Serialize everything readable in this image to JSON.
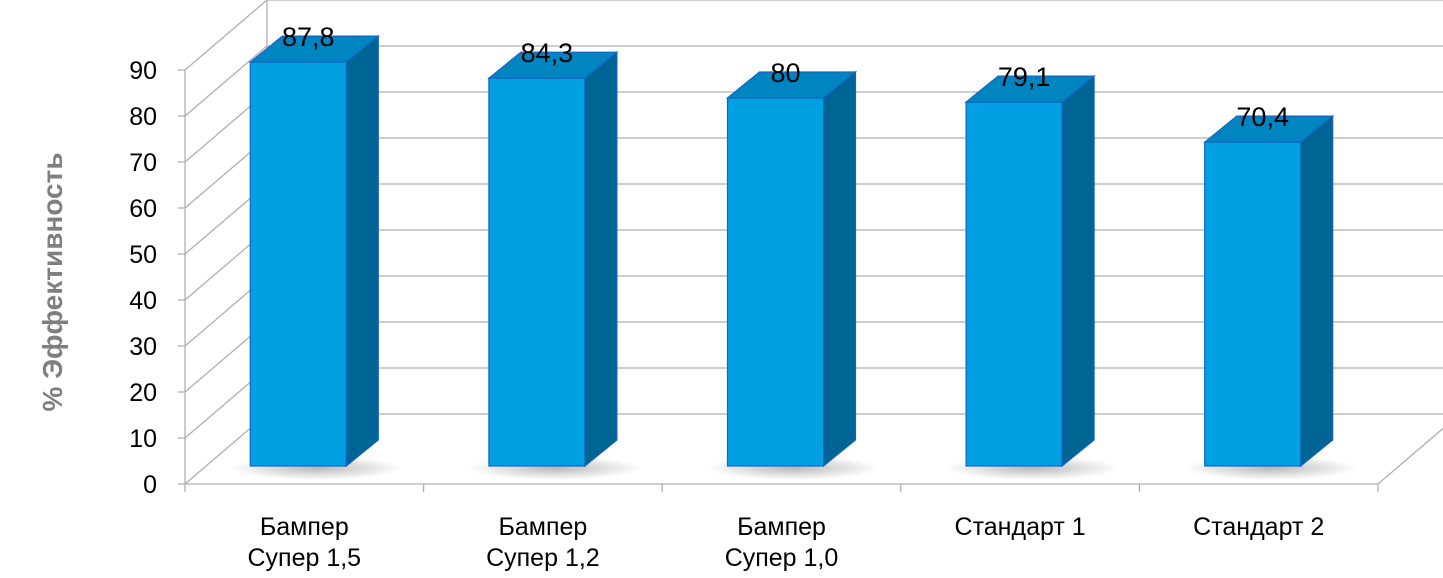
{
  "chart_data": {
    "type": "bar",
    "style": "3d-column",
    "categories": [
      [
        "Бампер",
        "Супер 1,5"
      ],
      [
        "Бампер",
        "Супер 1,2"
      ],
      [
        "Бампер",
        "Супер 1,0"
      ],
      [
        "Стандарт 1"
      ],
      [
        "Стандарт 2"
      ]
    ],
    "values": [
      87.8,
      84.3,
      80,
      79.1,
      70.4
    ],
    "value_labels": [
      "87,8",
      "84,3",
      "80",
      "79,1",
      "70,4"
    ],
    "title": "",
    "xlabel": "",
    "ylabel": "% Эффективность",
    "ylim": [
      0,
      90
    ],
    "yticks": [
      "0",
      "10",
      "20",
      "30",
      "40",
      "50",
      "60",
      "70",
      "80",
      "90"
    ],
    "grid": true,
    "legend": "none",
    "colors": {
      "front": "#00A0E3",
      "side": "#006494",
      "top": "#0085C0",
      "outline": "#1565C0",
      "grid": "#B0B0B0",
      "axis_title": "#7F7F7F"
    }
  }
}
